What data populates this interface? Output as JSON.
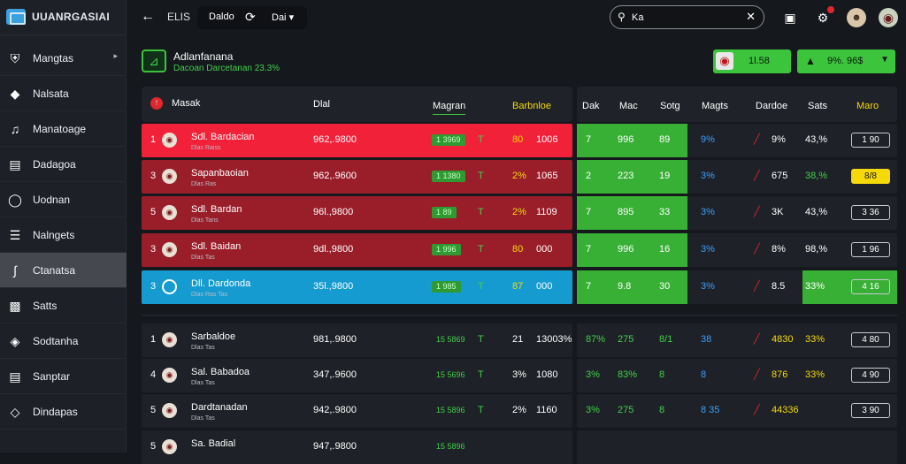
{
  "brand": {
    "name": "UUANRGASIAI"
  },
  "sidebar": {
    "items": [
      {
        "label": "Mangtas",
        "icon": "shield-icon"
      },
      {
        "label": "Nalsata",
        "icon": "diamond-icon"
      },
      {
        "label": "Manatoage",
        "icon": "music-note-icon"
      },
      {
        "label": "Dadagoa",
        "icon": "document-icon"
      },
      {
        "label": "Uodnan",
        "icon": "shield-outline-icon"
      },
      {
        "label": "Nalngets",
        "icon": "list-icon"
      },
      {
        "label": "Ctanatsa",
        "icon": "feather-icon"
      },
      {
        "label": "Satts",
        "icon": "controller-icon"
      },
      {
        "label": "Sodtanha",
        "icon": "badge-icon"
      },
      {
        "label": "Sanptar",
        "icon": "card-icon"
      },
      {
        "label": "Dindapas",
        "icon": "gem-icon"
      }
    ]
  },
  "topbar": {
    "crumb": "ELIS",
    "pill": {
      "left": "Daldo",
      "right": "Dai"
    },
    "search_value": "Ka"
  },
  "header": {
    "title": "Adlanfanana",
    "subtitle": "Dacoan Darcetanan 23.3%",
    "balance1": "1l.58",
    "balance2": "9%. 96$"
  },
  "columns": {
    "left": [
      "Masak",
      "Dlal",
      "Magran",
      "Barbnloe"
    ],
    "right": [
      "Dak",
      "Mac",
      "Sotg",
      "Magts",
      "Dardoe",
      "Sats",
      "Maro"
    ]
  },
  "colors": {
    "red": "#f2213a",
    "darkred": "#9a1e2a",
    "blue": "#159bd0",
    "green": "#38b035",
    "yellow": "#f5d90a"
  },
  "rows": [
    {
      "rank": "1",
      "team": "Sdl. Bardacian",
      "sub": "Dlas Raiss",
      "value": "962,.9800",
      "pill": "1 3969",
      "mark": "T",
      "odds": "80",
      "odds2": "1006",
      "k1": "7",
      "k2": "996",
      "k3": "89",
      "pct": "9%",
      "risk": "9%",
      "sets": "43,%",
      "box": "1 90",
      "bg": "red"
    },
    {
      "rank": "3",
      "team": "Sapanbaoian",
      "sub": "Dlas Ras",
      "value": "962,.9600",
      "pill": "1 1380",
      "mark": "T",
      "odds": "2%",
      "odds2": "1065",
      "k1": "2",
      "k2": "223",
      "k3": "19",
      "pct": "3%",
      "risk": "675",
      "sets": "38,%",
      "box": "8/8",
      "bg": "darkred"
    },
    {
      "rank": "5",
      "team": "Sdl. Bardan",
      "sub": "Dlas Tans",
      "value": "96l.,9800",
      "pill": "1 89",
      "mark": "T",
      "odds": "2%",
      "odds2": "1109",
      "k1": "7",
      "k2": "895",
      "k3": "33",
      "pct": "3%",
      "risk": "3K",
      "sets": "43,%",
      "box": "3 36",
      "bg": "darkred"
    },
    {
      "rank": "3",
      "team": "Sdl. Baidan",
      "sub": "Dlas Tas",
      "value": "9dl.,9800",
      "pill": "1 996",
      "mark": "T",
      "odds": "80",
      "odds2": "000",
      "k1": "7",
      "k2": "996",
      "k3": "16",
      "pct": "3%",
      "risk": "8%",
      "sets": "98,%",
      "box": "1 96",
      "bg": "darkred"
    },
    {
      "rank": "3",
      "team": "Dll. Dardonda",
      "sub": "Dlas Ras Tas",
      "value": "35l.,9800",
      "pill": "1 985",
      "mark": "T",
      "odds": "87",
      "odds2": "000",
      "k1": "7",
      "k2": "9.8",
      "k3": "30",
      "pct": "3%",
      "risk": "8.5",
      "sets": "33%",
      "box": "4 16",
      "bg": "blue"
    },
    {
      "rank": "1",
      "team": "Sarbaldoe",
      "sub": "Dlas Tas",
      "value": "981,.9800",
      "pill": "15 5869",
      "mark": "T",
      "odds": "21",
      "odds2": "13003%",
      "k1": "87%",
      "k2": "275",
      "k3": "8/1",
      "pct": "38",
      "risk": "4830",
      "sets": "33%",
      "box": "4 80",
      "bg": "none"
    },
    {
      "rank": "4",
      "team": "Sal. Babadoa",
      "sub": "Dlas Tas",
      "value": "347,.9600",
      "pill": "15 5696",
      "mark": "T",
      "odds": "3%",
      "odds2": "1080",
      "k1": "3%",
      "k2": "83%",
      "k3": "8",
      "pct": "8",
      "risk": "876",
      "sets": "33%",
      "box": "4 90",
      "bg": "none"
    },
    {
      "rank": "5",
      "team": "Dardtanadan",
      "sub": "Dlas Tas",
      "value": "942,.9800",
      "pill": "15 5896",
      "mark": "T",
      "odds": "2%",
      "odds2": "1160",
      "k1": "3%",
      "k2": "275",
      "k3": "8",
      "pct": "8 35",
      "risk": "44336",
      "sets": "",
      "box": "3 90",
      "bg": "none"
    },
    {
      "rank": "5",
      "team": "Sa. Badial",
      "sub": "",
      "value": "947,.9800",
      "pill": "15 5896",
      "mark": "",
      "odds": "",
      "odds2": "",
      "k1": "",
      "k2": "",
      "k3": "",
      "pct": "",
      "risk": "",
      "sets": "",
      "box": "",
      "bg": "none"
    }
  ]
}
